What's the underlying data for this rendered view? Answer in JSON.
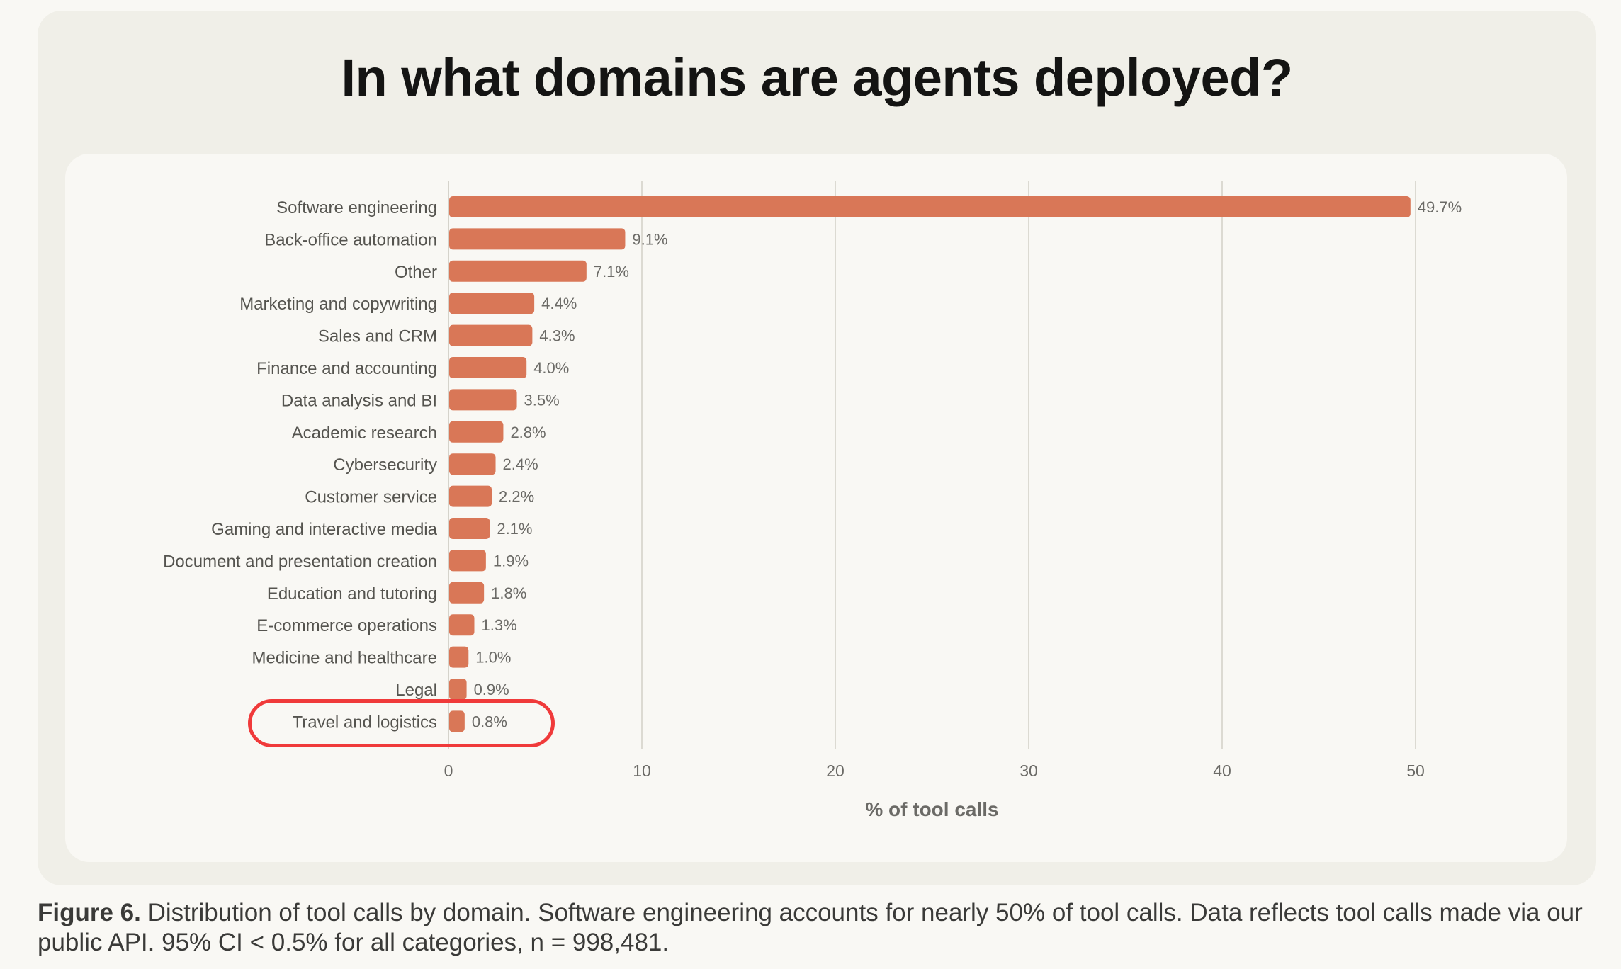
{
  "title": "In what domains are agents deployed?",
  "caption": {
    "label": "Figure 6.",
    "text": " Distribution of tool calls by domain. Software engineering accounts for nearly 50% of tool calls. Data reflects tool calls made via our public API. 95% CI < 0.5% for all categories, n = 998,481."
  },
  "highlight": {
    "target": "Travel and logistics",
    "color": "#f03a3a"
  },
  "chart_data": {
    "type": "bar",
    "orientation": "horizontal",
    "title": "In what domains are agents deployed?",
    "xlabel": "% of tool calls",
    "ylabel": "",
    "xlim": [
      0,
      50
    ],
    "xticks": [
      0,
      10,
      20,
      30,
      40,
      50
    ],
    "grid": "vertical",
    "bar_color": "#d97757",
    "categories": [
      "Software engineering",
      "Back-office automation",
      "Other",
      "Marketing and copywriting",
      "Sales and CRM",
      "Finance and accounting",
      "Data analysis and BI",
      "Academic research",
      "Cybersecurity",
      "Customer service",
      "Gaming and interactive media",
      "Document and presentation creation",
      "Education and tutoring",
      "E-commerce operations",
      "Medicine and healthcare",
      "Legal",
      "Travel and logistics"
    ],
    "values": [
      49.7,
      9.1,
      7.1,
      4.4,
      4.3,
      4.0,
      3.5,
      2.8,
      2.4,
      2.2,
      2.1,
      1.9,
      1.8,
      1.3,
      1.0,
      0.9,
      0.8
    ],
    "value_labels": [
      "49.7%",
      "9.1%",
      "7.1%",
      "4.4%",
      "4.3%",
      "4.0%",
      "3.5%",
      "2.8%",
      "2.4%",
      "2.2%",
      "2.1%",
      "1.9%",
      "1.8%",
      "1.3%",
      "1.0%",
      "0.9%",
      "0.8%"
    ]
  }
}
